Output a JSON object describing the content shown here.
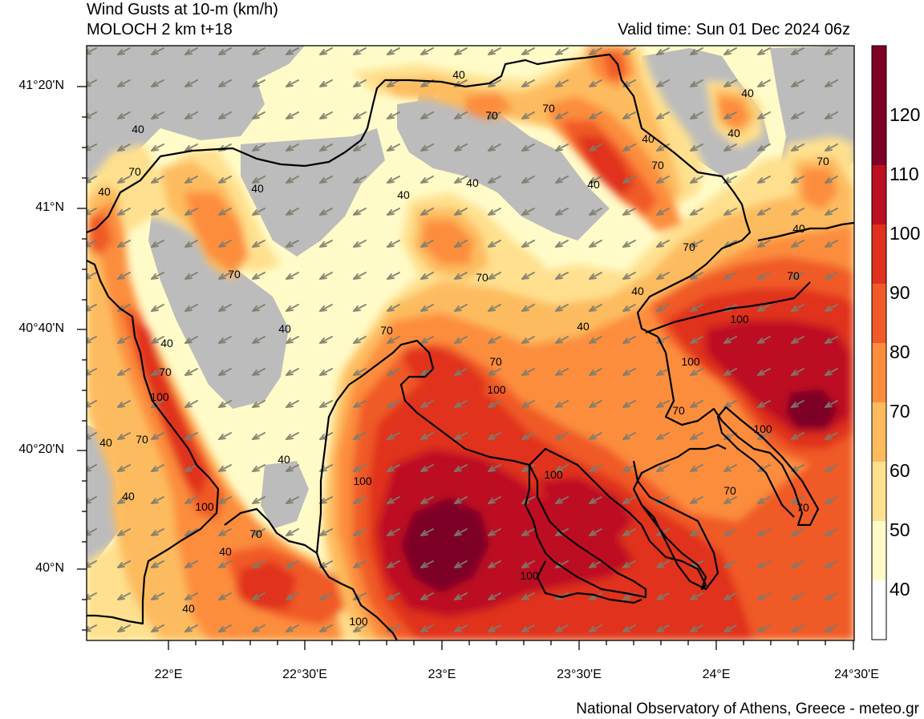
{
  "title_line1": "Wind Gusts at 10-m (km/h)",
  "title_line2": "MOLOCH 2 km t+18",
  "valid_time": "Valid time: Sun 01 Dec 2024 06z",
  "lat_labels": [
    "41°20'N",
    "41°N",
    "40°40'N",
    "40°20'N",
    "40°N"
  ],
  "lon_labels": [
    "22°E",
    "22°30'E",
    "23°E",
    "23°30'E",
    "24°E",
    "24°30'E"
  ],
  "colorbar": {
    "labels": [
      "120",
      "110",
      "100",
      "90",
      "80",
      "70",
      "60",
      "50",
      "40"
    ],
    "colors": [
      "#ffffff",
      "#fffbc8",
      "#fee08e",
      "#fdbb5e",
      "#fc8d3c",
      "#f05a28",
      "#e0301e",
      "#bd0f22",
      "#7d0025"
    ]
  },
  "contour_labels": [
    "40",
    "70",
    "40",
    "70",
    "40",
    "40",
    "40",
    "70",
    "40",
    "40",
    "70",
    "40",
    "40",
    "70",
    "40",
    "70",
    "70",
    "40",
    "40",
    "70",
    "40",
    "70",
    "70",
    "40",
    "100",
    "40",
    "100",
    "70",
    "100",
    "70",
    "40",
    "70",
    "100",
    "40",
    "100",
    "100",
    "70",
    "100",
    "70",
    "70",
    "100",
    "70",
    "40"
  ],
  "credit": "National Observatory of Athens, Greece - meteo.gr"
}
